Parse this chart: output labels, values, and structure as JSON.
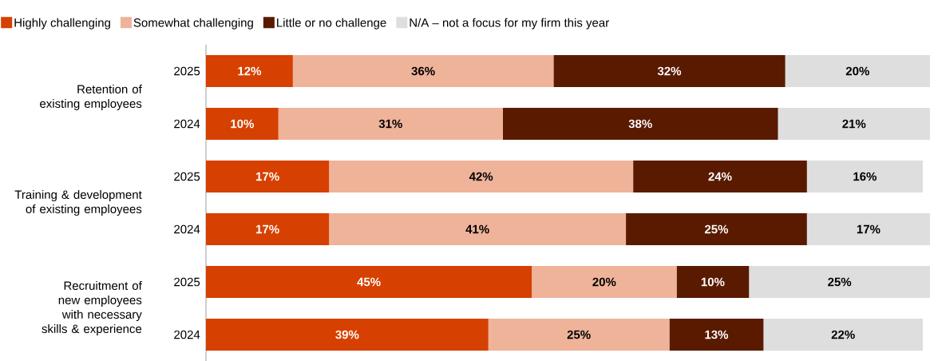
{
  "chart_data": {
    "type": "bar",
    "orientation": "horizontal",
    "stacked": true,
    "legend": "top",
    "tick_labels": "y",
    "xlim": [
      0,
      100
    ],
    "categories": [
      "2025",
      "2024",
      "2025",
      "2024",
      "2025",
      "2024"
    ],
    "annotations": [
      "Retention of existing employees",
      "Training & development of existing employees",
      "Recruitment of new employees with necessary skills & experience"
    ],
    "series": [
      {
        "name": "Highly challenging",
        "color": "#d64000",
        "values": [
          12,
          10,
          17,
          17,
          45,
          39
        ],
        "value_labels": [
          "12%",
          "10%",
          "17%",
          "17%",
          "45%",
          "39%"
        ]
      },
      {
        "name": "Somewhat challenging",
        "color": "#efb39a",
        "values": [
          36,
          31,
          42,
          41,
          20,
          25
        ],
        "value_labels": [
          "36%",
          "31%",
          "42%",
          "41%",
          "20%",
          "25%"
        ]
      },
      {
        "name": "Little or no challenge",
        "color": "#5a1a00",
        "values": [
          32,
          38,
          24,
          25,
          10,
          13
        ],
        "value_labels": [
          "32%",
          "38%",
          "24%",
          "25%",
          "10%",
          "13%"
        ]
      },
      {
        "name": "N/A – not a focus for my firm this year",
        "color": "#dedede",
        "values": [
          20,
          21,
          16,
          17,
          25,
          22
        ],
        "value_labels": [
          "20%",
          "21%",
          "16%",
          "17%",
          "25%",
          "22%"
        ]
      }
    ]
  }
}
